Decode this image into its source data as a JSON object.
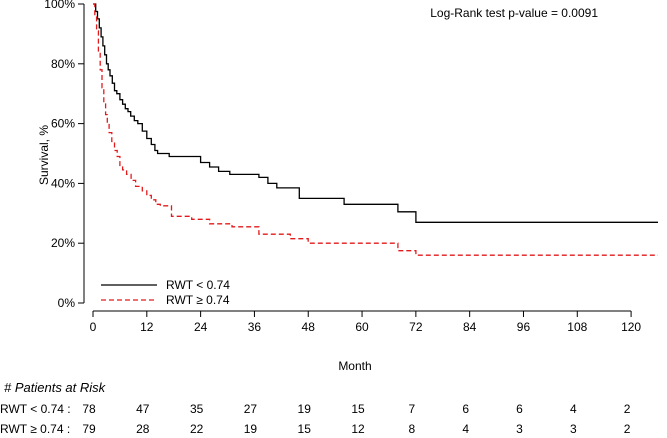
{
  "chart_data": {
    "type": "line",
    "subtype": "kaplan-meier",
    "annotation": "Log-Rank test p-value = 0.0091",
    "xlabel": "Month",
    "ylabel": "Survival, %",
    "xlim": [
      0,
      126
    ],
    "ylim": [
      0,
      100
    ],
    "x_ticks": [
      0,
      12,
      24,
      36,
      48,
      60,
      72,
      84,
      96,
      108,
      120
    ],
    "y_ticks": [
      0,
      20,
      40,
      60,
      80,
      100
    ],
    "y_tick_labels": [
      "0%",
      "20%",
      "40%",
      "60%",
      "80%",
      "100%"
    ],
    "grid": false,
    "legend_position": "bottom-left",
    "series": [
      {
        "name": "RWT < 0.74",
        "color": "#000000",
        "dash": "solid",
        "x": [
          0,
          0.6,
          1.0,
          1.4,
          1.8,
          2.2,
          2.6,
          3.0,
          3.4,
          3.8,
          4.3,
          4.8,
          5.3,
          6.0,
          6.6,
          7.2,
          7.8,
          8.4,
          9.2,
          10.0,
          11.0,
          12.0,
          13.0,
          13.8,
          14.4,
          15.0,
          17.0,
          19.5,
          24.0,
          26.0,
          28.0,
          30.5,
          37.0,
          39.0,
          41.0,
          46.0,
          56.0,
          68.0,
          72.0,
          126.0
        ],
        "y": [
          100,
          97.5,
          95,
          92,
          89,
          86,
          83,
          80,
          78,
          76,
          73.5,
          71,
          70,
          68,
          66.5,
          65,
          64,
          62.5,
          61,
          60,
          57.5,
          55,
          53,
          51,
          50,
          50,
          49,
          49,
          47,
          45.5,
          44,
          43,
          42,
          40,
          38.5,
          35,
          33,
          30.5,
          27,
          27
        ]
      },
      {
        "name": "RWT ≥ 0.74",
        "color": "#e31a1c",
        "dash": "dashed",
        "x": [
          0,
          0.4,
          0.8,
          1.2,
          1.6,
          2.0,
          2.4,
          2.8,
          3.2,
          3.6,
          4.2,
          4.8,
          5.4,
          6.0,
          6.6,
          7.5,
          8.5,
          9.5,
          11.0,
          12.0,
          13.0,
          14.0,
          15.0,
          17.5,
          22.0,
          26.0,
          31.0,
          37.0,
          44.0,
          48.0,
          68.0,
          72.0,
          126.0
        ],
        "y": [
          100,
          96,
          91,
          84,
          78,
          72,
          67,
          63,
          60,
          57,
          54,
          51,
          49,
          46,
          44.5,
          43,
          41,
          39,
          37.5,
          36,
          34.5,
          33,
          32.5,
          29,
          28,
          26.5,
          25.5,
          23,
          21.5,
          20,
          17.5,
          16,
          16
        ]
      }
    ],
    "risk_table": {
      "title": "# Patients at Risk",
      "times": [
        0,
        12,
        24,
        36,
        48,
        60,
        72,
        84,
        96,
        108,
        120
      ],
      "rows": [
        {
          "label": "RWT < 0.74 :",
          "counts": [
            "78",
            "47",
            "35",
            "27",
            "19",
            "15",
            "7",
            "6",
            "6",
            "4",
            "2"
          ]
        },
        {
          "label": "RWT ≥ 0.74 :",
          "counts": [
            "79",
            "28",
            "22",
            "19",
            "15",
            "12",
            "8",
            "4",
            "3",
            "3",
            "2"
          ]
        }
      ]
    }
  }
}
